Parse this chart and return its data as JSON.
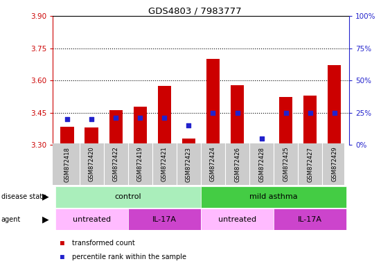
{
  "title": "GDS4803 / 7983777",
  "samples": [
    "GSM872418",
    "GSM872420",
    "GSM872422",
    "GSM872419",
    "GSM872421",
    "GSM872423",
    "GSM872424",
    "GSM872426",
    "GSM872428",
    "GSM872425",
    "GSM872427",
    "GSM872429"
  ],
  "bar_tops": [
    3.385,
    3.383,
    3.463,
    3.477,
    3.575,
    3.33,
    3.7,
    3.578,
    3.302,
    3.522,
    3.53,
    3.67
  ],
  "bar_base": 3.3,
  "percentile_ranks": [
    20,
    20,
    21,
    21,
    21,
    15,
    25,
    25,
    5,
    25,
    25,
    25
  ],
  "ylim_left": [
    3.3,
    3.9
  ],
  "ylim_right": [
    0,
    100
  ],
  "yticks_left": [
    3.3,
    3.45,
    3.6,
    3.75,
    3.9
  ],
  "yticks_right": [
    0,
    25,
    50,
    75,
    100
  ],
  "ytick_labels_right": [
    "0%",
    "25%",
    "50%",
    "75%",
    "100%"
  ],
  "bar_color": "#cc0000",
  "blue_color": "#2222cc",
  "disease_state_groups": [
    {
      "label": "control",
      "start": 0,
      "end": 6,
      "color": "#aaeebb"
    },
    {
      "label": "mild asthma",
      "start": 6,
      "end": 12,
      "color": "#44cc44"
    }
  ],
  "agent_groups": [
    {
      "label": "untreated",
      "start": 0,
      "end": 3,
      "color": "#ffbbff"
    },
    {
      "label": "IL-17A",
      "start": 3,
      "end": 6,
      "color": "#cc44cc"
    },
    {
      "label": "untreated",
      "start": 6,
      "end": 9,
      "color": "#ffbbff"
    },
    {
      "label": "IL-17A",
      "start": 9,
      "end": 12,
      "color": "#cc44cc"
    }
  ],
  "legend_red": "transformed count",
  "legend_blue": "percentile rank within the sample",
  "left_axis_color": "#cc0000",
  "right_axis_color": "#2222cc",
  "hgrid_values": [
    3.45,
    3.6,
    3.75
  ],
  "bar_width": 0.55
}
